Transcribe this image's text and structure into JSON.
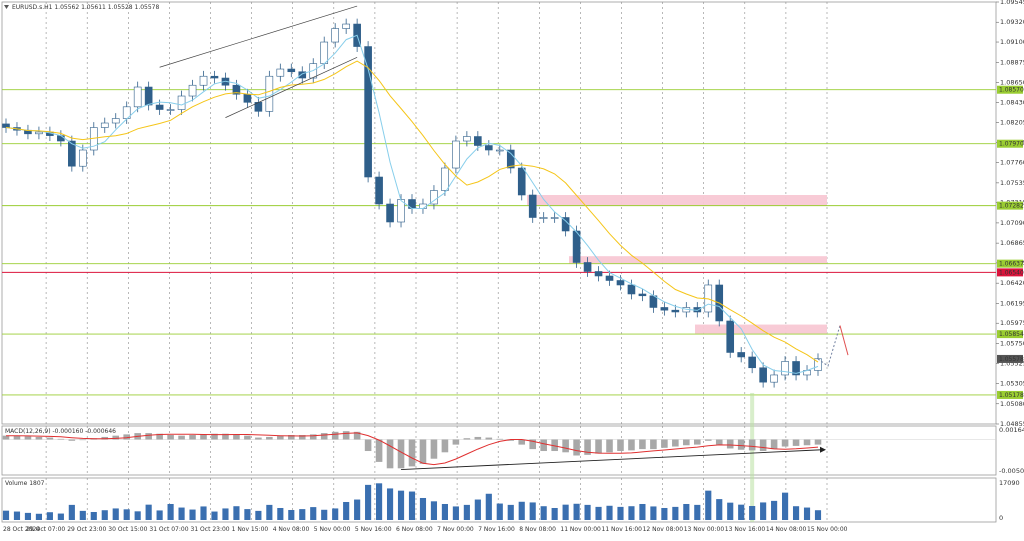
{
  "symbol_header": "EURUSD.s.H1  1.05562 1.05611 1.05528 1.05578",
  "chart_data": {
    "type": "candlestick",
    "symbol": "EURUSD.s",
    "timeframe": "H1",
    "ohlc_header": {
      "open": 1.05562,
      "high": 1.05611,
      "low": 1.05528,
      "close": 1.05578
    },
    "price_axis_ticks": [
      "1.09545",
      "1.09320",
      "1.09100",
      "1.08875",
      "1.08650",
      "1.08430",
      "1.08205",
      "1.07985",
      "1.07760",
      "1.07535",
      "1.07315",
      "1.07090",
      "1.06865",
      "1.06645",
      "1.06420",
      "1.06195",
      "1.05975",
      "1.05750",
      "1.05525",
      "1.05305",
      "1.05080",
      "1.04855"
    ],
    "price_range": [
      1.04855,
      1.09545
    ],
    "time_axis_labels": [
      "28 Oct 2024",
      "29 Oct 07:00",
      "29 Oct 23:00",
      "30 Oct 15:00",
      "31 Oct 07:00",
      "31 Oct 23:00",
      "1 Nov 15:00",
      "4 Nov 08:00",
      "5 Nov 00:00",
      "5 Nov 16:00",
      "6 Nov 08:00",
      "7 Nov 00:00",
      "7 Nov 16:00",
      "8 Nov 08:00",
      "11 Nov 00:00",
      "11 Nov 16:00",
      "12 Nov 08:00",
      "13 Nov 00:00",
      "13 Nov 16:00",
      "14 Nov 08:00",
      "15 Nov 00:00"
    ],
    "close_series": [
      1.0815,
      1.0812,
      1.0808,
      1.081,
      1.0806,
      1.08,
      1.0772,
      1.079,
      1.0815,
      1.082,
      1.0825,
      1.0838,
      1.086,
      1.084,
      1.0835,
      1.0835,
      1.085,
      1.0862,
      1.0872,
      1.087,
      1.0862,
      1.0852,
      1.0843,
      1.0833,
      1.0872,
      1.088,
      1.0877,
      1.087,
      1.0886,
      1.091,
      1.0925,
      1.093,
      1.0905,
      1.076,
      1.073,
      1.071,
      1.0735,
      1.0725,
      1.073,
      1.0745,
      1.077,
      1.08,
      1.0805,
      1.0795,
      1.079,
      1.079,
      1.077,
      1.074,
      1.0715,
      1.0715,
      1.0715,
      1.07,
      1.0665,
      1.0655,
      1.065,
      1.0645,
      1.064,
      1.063,
      1.0628,
      1.0615,
      1.0612,
      1.061,
      1.0615,
      1.061,
      1.064,
      1.06,
      1.0565,
      1.056,
      1.0548,
      1.0532,
      1.054,
      1.0555,
      1.054,
      1.0545,
      1.0558
    ],
    "indicators": {
      "ma_fast_color": "#87ceeb",
      "ma_slow_color": "#f5c518"
    },
    "horizontal_levels": [
      {
        "price": 1.0857,
        "label": "1.08570",
        "color": "#9acd32"
      },
      {
        "price": 1.0797,
        "label": "1.07970",
        "color": "#9acd32"
      },
      {
        "price": 1.07282,
        "label": "1.07282",
        "color": "#9acd32"
      },
      {
        "price": 1.06637,
        "label": "1.06637",
        "color": "#9acd32"
      },
      {
        "price": 1.0654,
        "label": "1.06540",
        "color": "#dc143c"
      },
      {
        "price": 1.05854,
        "label": "1.05854",
        "color": "#9acd32"
      },
      {
        "price": 1.05578,
        "label": "1.05578",
        "color": "#555555"
      },
      {
        "price": 1.05178,
        "label": "1.05178",
        "color": "#9acd32"
      }
    ],
    "resistance_zones": [
      {
        "from": 1.0728,
        "to": 1.074
      },
      {
        "from": 1.0664,
        "to": 1.0672
      },
      {
        "from": 1.0586,
        "to": 1.0596
      }
    ],
    "zone_color": "#f8c8d4",
    "projection": [
      1.05578,
      1.055,
      1.0595,
      1.0562
    ],
    "macd": {
      "label": "MACD(12,26,9) -0.000160 -0.000646",
      "axis_ticks": [
        "0.00164",
        "0.00",
        "-0.005076"
      ],
      "range": [
        -0.005076,
        0.00164
      ],
      "histogram": [
        0.0006,
        0.0006,
        0.0005,
        0.0004,
        0.0003,
        0.0001,
        -0.0002,
        -0.0001,
        0.0002,
        0.0004,
        0.0006,
        0.0008,
        0.001,
        0.001,
        0.0009,
        0.0007,
        0.0006,
        0.0007,
        0.0008,
        0.0009,
        0.0009,
        0.0008,
        0.0006,
        0.0003,
        0.0004,
        0.0006,
        0.0007,
        0.0007,
        0.0008,
        0.001,
        0.0012,
        0.0013,
        0.0012,
        -0.0018,
        -0.0035,
        -0.0045,
        -0.0045,
        -0.0042,
        -0.0038,
        -0.003,
        -0.002,
        -0.0008,
        0.0002,
        0.0004,
        0.0003,
        0.0001,
        -0.0002,
        -0.0008,
        -0.0015,
        -0.0018,
        -0.0018,
        -0.002,
        -0.0025,
        -0.0024,
        -0.0022,
        -0.002,
        -0.0018,
        -0.0017,
        -0.0015,
        -0.0015,
        -0.0013,
        -0.0011,
        -0.0009,
        -0.0008,
        -0.0002,
        -0.0008,
        -0.0014,
        -0.0016,
        -0.0017,
        -0.0018,
        -0.0015,
        -0.0011,
        -0.001,
        -0.0009,
        -0.0008
      ],
      "signal_color": "#e03030",
      "histogram_color": "#a8a8a8",
      "divergence_arrow_color": "#222222"
    },
    "volume": {
      "label": "Volume 1807",
      "axis_ticks": [
        "17090",
        "0"
      ],
      "max": 17090,
      "values": [
        4200,
        3800,
        3200,
        2800,
        3500,
        2900,
        6800,
        4100,
        3600,
        4400,
        5200,
        4800,
        3900,
        6900,
        4300,
        7200,
        5600,
        4700,
        6100,
        3800,
        5200,
        6200,
        4900,
        4100,
        6800,
        5400,
        4500,
        4900,
        5800,
        4600,
        5200,
        8100,
        9200,
        15800,
        16500,
        14200,
        13200,
        12800,
        9900,
        8400,
        7200,
        6100,
        6800,
        9200,
        11800,
        7400,
        6800,
        8200,
        7900,
        6200,
        5400,
        6900,
        7300,
        6800,
        5900,
        6400,
        5900,
        6200,
        7200,
        6100,
        5400,
        5900,
        7200,
        6800,
        13200,
        9400,
        7800,
        6900,
        6300,
        7900,
        8600,
        12300,
        6200,
        5600,
        4400
      ]
    },
    "grid": true
  }
}
